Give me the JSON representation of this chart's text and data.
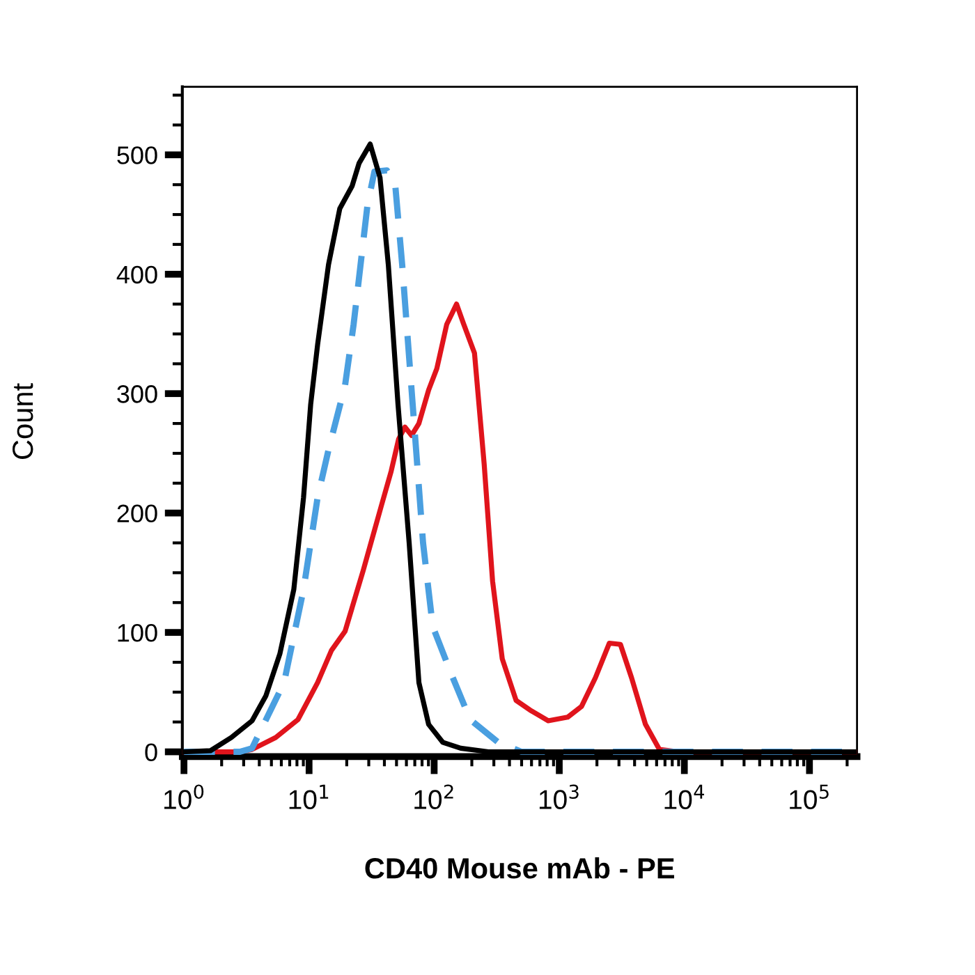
{
  "chart_data": {
    "type": "line",
    "xlabel": "CD40 Mouse mAb - PE",
    "ylabel": "Count",
    "log": "x",
    "xlim": [
      0.97,
      240000
    ],
    "xticks": [
      {
        "value": 1,
        "label": "10$^{0}$"
      },
      {
        "value": 10,
        "label": "10$^{1}$"
      },
      {
        "value": 100,
        "label": "10$^{2}$"
      },
      {
        "value": 1000,
        "label": "10$^{3}$"
      },
      {
        "value": 10000,
        "label": "10$^{4}$"
      },
      {
        "value": 100000,
        "label": "10$^{5}$"
      }
    ],
    "ylim": [
      -4,
      557
    ],
    "yticks": [
      0,
      100,
      200,
      300,
      400,
      500
    ],
    "marker": "none",
    "series": [
      {
        "color": "#000000",
        "line_style": "solid",
        "x": [
          1,
          1.63,
          2.39,
          3.5,
          4.52,
          5.84,
          7.55,
          9.03,
          10.3,
          11.7,
          14.3,
          17.6,
          22.1,
          25.1,
          30.8,
          36.9,
          43.0,
          51.4,
          63.1,
          75.5,
          90.3,
          117,
          163,
          271,
          240000
        ],
        "values": [
          0,
          1,
          12,
          26,
          47,
          82,
          136,
          213,
          291,
          341,
          408,
          455,
          474,
          493,
          509,
          481,
          408,
          291,
          175,
          58,
          23,
          8,
          3,
          0,
          0
        ]
      },
      {
        "color": "#4a9fe0",
        "line_style": "dashed",
        "x": [
          1,
          2.8,
          3.5,
          6.31,
          9.03,
          11.7,
          14.3,
          19.4,
          22.7,
          25.8,
          29.3,
          33.3,
          41.9,
          48.9,
          55.5,
          63.1,
          71.7,
          81.5,
          97.4,
          136,
          194,
          324,
          500,
          240000
        ],
        "values": [
          0,
          0,
          3,
          58,
          136,
          213,
          253,
          307,
          358,
          408,
          458,
          486,
          487,
          474,
          408,
          330,
          253,
          175,
          105,
          66,
          27,
          8,
          0,
          0
        ]
      },
      {
        "color": "#e0141c",
        "line_style": "solid",
        "x": [
          1,
          2.8,
          3.5,
          5.41,
          8.15,
          11.7,
          15.1,
          19.4,
          27.1,
          37.8,
          45.3,
          52.0,
          58.4,
          66.0,
          75.5,
          90.3,
          105,
          126,
          151,
          171,
          210,
          251,
          293,
          350,
          452,
          584,
          815,
          1166,
          1506,
          1944,
          2512,
          3082,
          3784,
          4887,
          6310,
          9030,
          240000
        ],
        "values": [
          0,
          0,
          2,
          12,
          27,
          58,
          85,
          101,
          152,
          206,
          235,
          262,
          272,
          265,
          275,
          303,
          321,
          358,
          375,
          359,
          334,
          241,
          143,
          78,
          43,
          35,
          26,
          29,
          38,
          62,
          91,
          90,
          62,
          23,
          2,
          0,
          0
        ]
      }
    ]
  }
}
